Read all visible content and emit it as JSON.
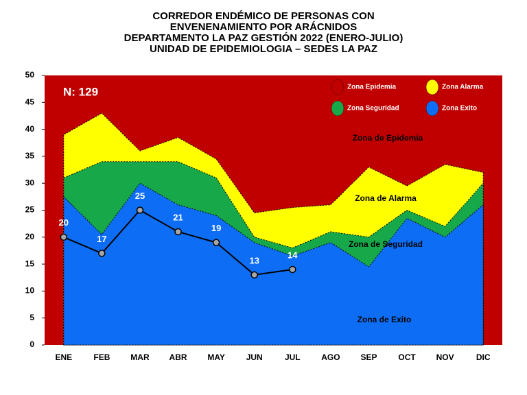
{
  "chart_data": {
    "type": "area",
    "title": [
      "CORREDOR ENDÉMICO DE PERSONAS CON",
      "ENVENENAMIENTO POR ARÁCNIDOS",
      "DEPARTAMENTO LA PAZ GESTIÓN 2022 (ENERO-JULIO)",
      "UNIDAD DE EPIDEMIOLOGIA – SEDES LA PAZ"
    ],
    "categories": [
      "ENE",
      "FEB",
      "MAR",
      "ABR",
      "MAY",
      "JUN",
      "JUL",
      "AGO",
      "SEP",
      "OCT",
      "NOV",
      "DIC"
    ],
    "ylim": [
      0,
      50
    ],
    "yticks": [
      0,
      5,
      10,
      15,
      20,
      25,
      30,
      35,
      40,
      45,
      50
    ],
    "background_zone": {
      "name": "Zona Epidemia",
      "color": "#c00000"
    },
    "series": [
      {
        "name": "Zona Alarma",
        "color": "#ffff00",
        "values": [
          39,
          43,
          36,
          38.5,
          34.5,
          24.5,
          25.5,
          26,
          33,
          29.5,
          33.5,
          32
        ]
      },
      {
        "name": "Zona Seguridad",
        "color": "#17a84a",
        "values": [
          31,
          34,
          34,
          34,
          31,
          20,
          18,
          21,
          20,
          25,
          22,
          30
        ]
      },
      {
        "name": "Zona Exito",
        "color": "#0d6ef5",
        "values": [
          27.5,
          20.5,
          30,
          26,
          24,
          19,
          16.5,
          19,
          14.5,
          23.5,
          20,
          26
        ]
      }
    ],
    "cases": {
      "values": [
        20,
        17,
        25,
        21,
        19,
        13,
        14,
        null,
        null,
        null,
        null,
        null
      ],
      "color": "#000000"
    },
    "annotations": [
      "N: 129",
      "Zona de Epidemia",
      "Zona de Alarma",
      "Zona de Seguridad",
      "Zona de Exito"
    ]
  }
}
